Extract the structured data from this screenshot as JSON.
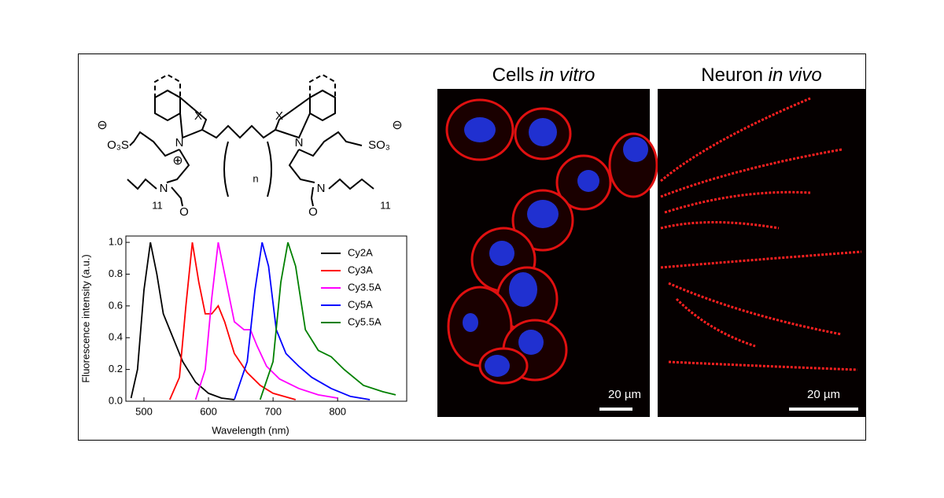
{
  "structure": {
    "labels": [
      "⊖",
      "O₃S",
      "X",
      "N",
      "⊕",
      "n",
      "X",
      "N",
      "SO₃",
      "⊖",
      "N",
      "11",
      "O",
      "O",
      "N",
      "11"
    ]
  },
  "images": [
    {
      "title": "Cells",
      "title_italic": "in vitro",
      "scale_bar": "20 µm"
    },
    {
      "title": "Neuron",
      "title_italic": "in vivo",
      "scale_bar": "20 µm"
    }
  ],
  "chart_data": {
    "type": "line",
    "xlabel": "Wavelength (nm)",
    "ylabel": "Fluorescence intensity (a.u.)",
    "xlim": [
      472,
      907
    ],
    "ylim": [
      0,
      1.04
    ],
    "xticks": [
      500,
      600,
      700,
      800
    ],
    "yticks": [
      {
        "value": 0,
        "label": "0.0"
      },
      0.2,
      0.4,
      0.6,
      0.8,
      {
        "value": 1,
        "label": "1.0"
      }
    ],
    "legend": "upper right",
    "series": [
      {
        "name": "Cy2A",
        "color": "#000000",
        "x": [
          480,
          490,
          500,
          510,
          520,
          530,
          540,
          550,
          560,
          580,
          600,
          620,
          640
        ],
        "values": [
          0.02,
          0.2,
          0.7,
          1.0,
          0.8,
          0.55,
          0.45,
          0.35,
          0.25,
          0.12,
          0.05,
          0.02,
          0.01
        ]
      },
      {
        "name": "Cy3A",
        "color": "#ff0000",
        "x": [
          540,
          555,
          565,
          575,
          585,
          595,
          605,
          615,
          625,
          640,
          660,
          680,
          700,
          735
        ],
        "values": [
          0.01,
          0.15,
          0.6,
          1.0,
          0.75,
          0.55,
          0.55,
          0.6,
          0.5,
          0.3,
          0.18,
          0.1,
          0.05,
          0.01
        ]
      },
      {
        "name": "Cy3.5A",
        "color": "#ff00ff",
        "x": [
          580,
          595,
          605,
          615,
          625,
          640,
          655,
          665,
          675,
          690,
          710,
          740,
          770,
          800
        ],
        "values": [
          0.01,
          0.2,
          0.65,
          1.0,
          0.8,
          0.5,
          0.45,
          0.45,
          0.35,
          0.22,
          0.14,
          0.08,
          0.04,
          0.02
        ]
      },
      {
        "name": "Cy5A",
        "color": "#0000ff",
        "x": [
          640,
          660,
          672,
          683,
          693,
          705,
          720,
          740,
          760,
          790,
          820,
          850
        ],
        "values": [
          0.01,
          0.25,
          0.7,
          1.0,
          0.85,
          0.45,
          0.3,
          0.22,
          0.15,
          0.08,
          0.03,
          0.01
        ]
      },
      {
        "name": "Cy5.5A",
        "color": "#008000",
        "x": [
          680,
          700,
          712,
          723,
          735,
          750,
          770,
          790,
          810,
          840,
          870,
          890
        ],
        "values": [
          0.01,
          0.25,
          0.75,
          1.0,
          0.85,
          0.45,
          0.32,
          0.28,
          0.2,
          0.1,
          0.06,
          0.04
        ]
      }
    ]
  }
}
